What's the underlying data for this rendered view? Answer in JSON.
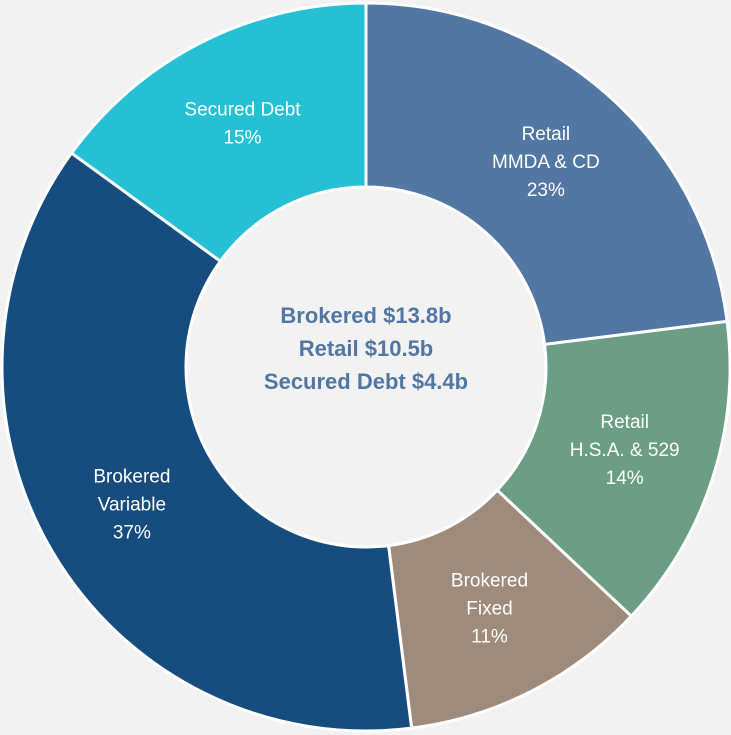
{
  "chart_data": {
    "type": "donut",
    "categories": [
      [
        "Retail",
        "MMDA & CD"
      ],
      [
        "Retail",
        "H.S.A. & 529"
      ],
      [
        "Brokered",
        "Fixed"
      ],
      [
        "Brokered",
        "Variable"
      ],
      [
        "Secured Debt"
      ]
    ],
    "values": [
      23,
      14,
      11,
      37,
      15
    ],
    "value_labels": [
      "23%",
      "14%",
      "11%",
      "37%",
      "15%"
    ],
    "colors": [
      "#5277a3",
      "#6b9e84",
      "#9e8b7b",
      "#164d7e",
      "#26c0d4"
    ],
    "center_text": [
      "Brokered $13.8b",
      "Retail $10.5b",
      "Secured Debt $4.4b"
    ]
  }
}
